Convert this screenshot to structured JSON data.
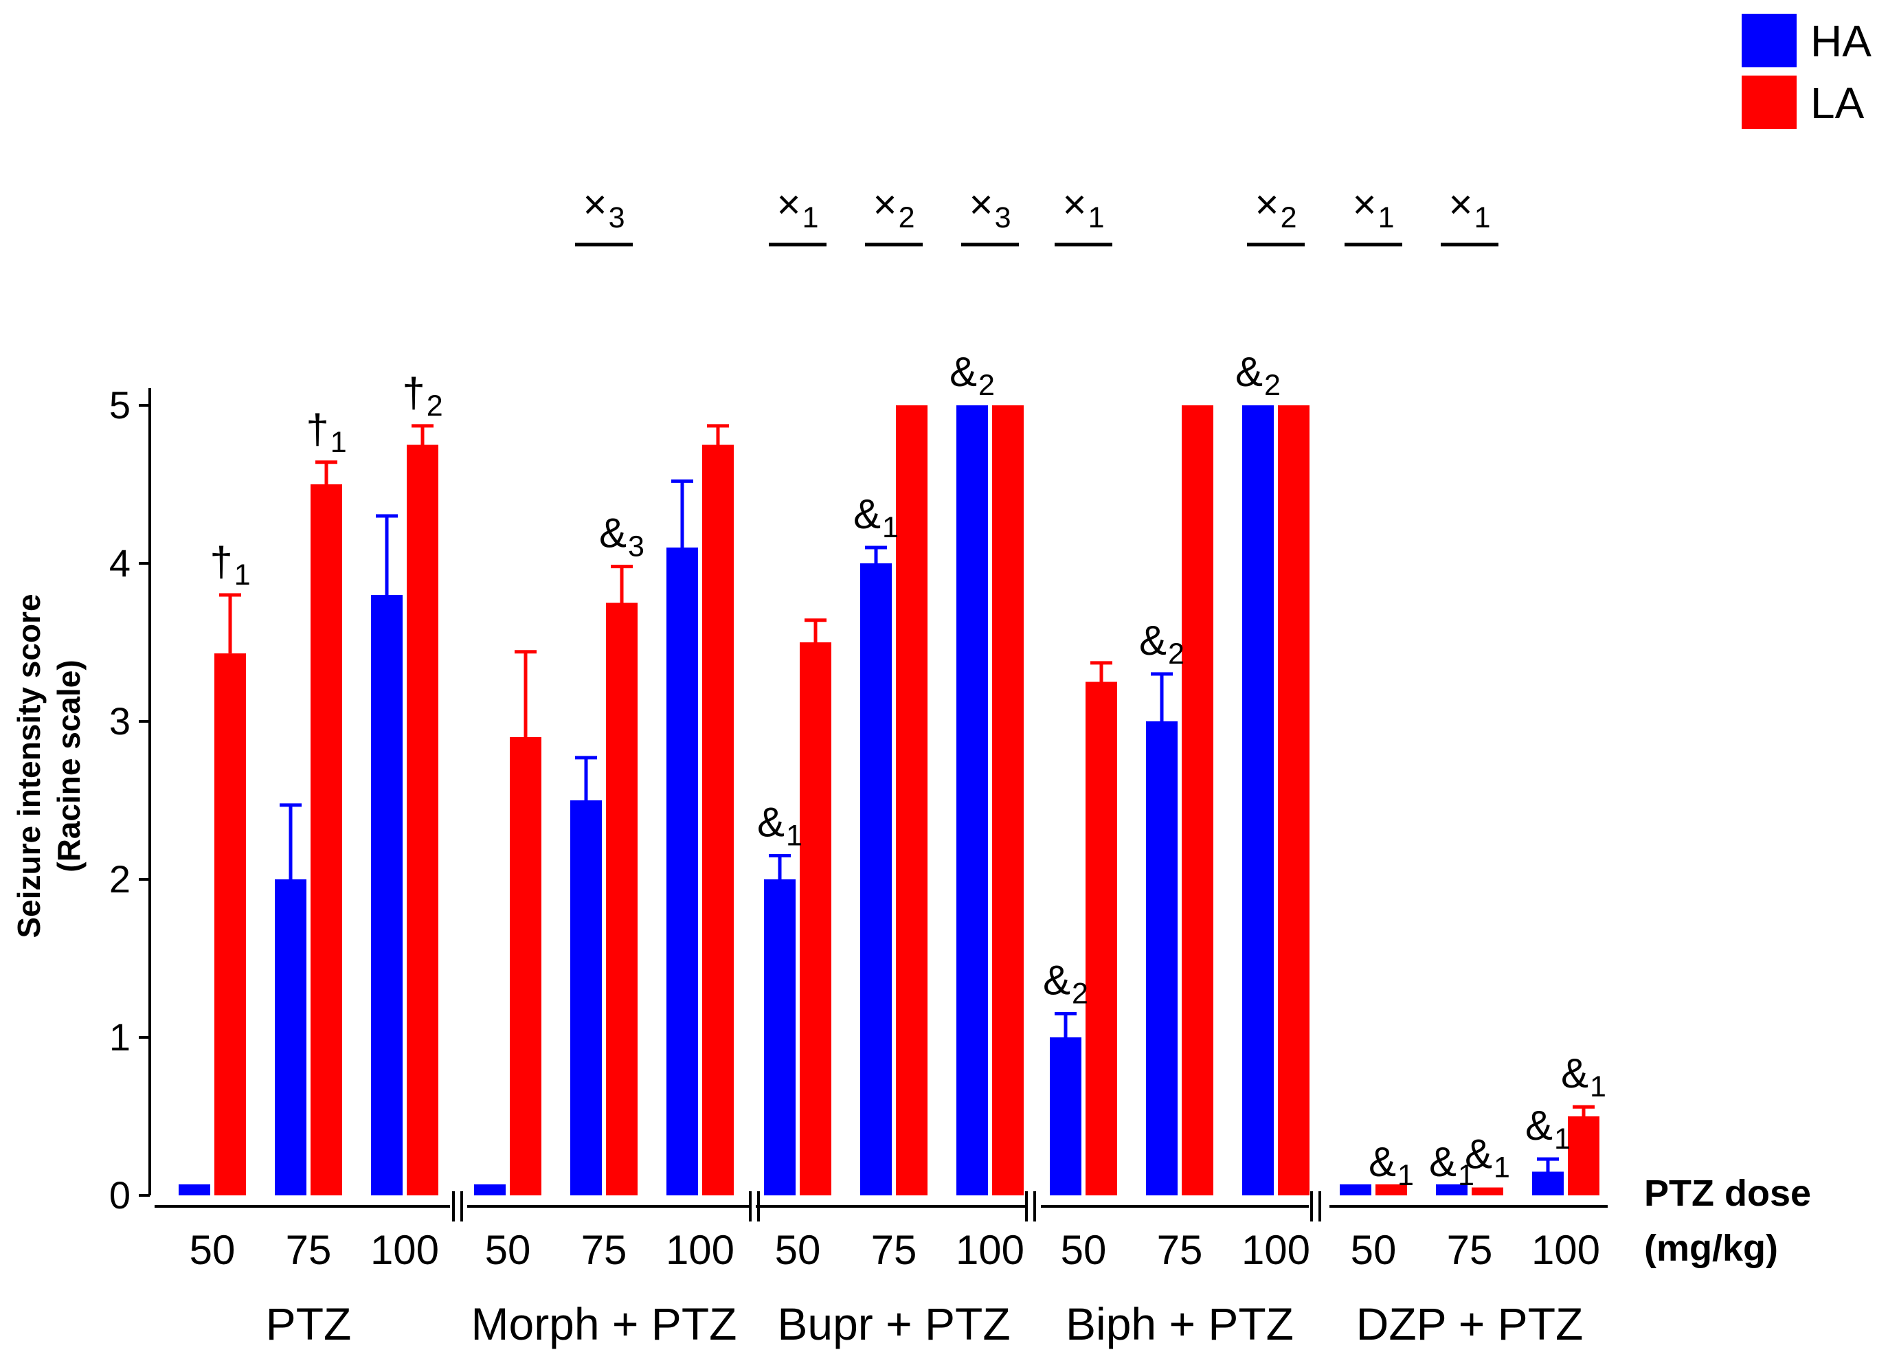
{
  "chart_data": {
    "type": "bar",
    "ylabel_line1": "Seizure intensity score",
    "ylabel_line2": "(Racine scale)",
    "xlabel_line1": "PTZ dose",
    "xlabel_line2": "(mg/kg)",
    "ylim": [
      0,
      5
    ],
    "yticks": [
      "0",
      "1",
      "2",
      "3",
      "4",
      "5"
    ],
    "dose_labels": [
      "50",
      "75",
      "100"
    ],
    "legend": [
      {
        "name": "HA",
        "color": "#0000ff"
      },
      {
        "name": "LA",
        "color": "#ff0000"
      }
    ],
    "groups": [
      {
        "name": "PTZ",
        "HA": {
          "values": [
            0,
            2.0,
            3.8
          ],
          "errors": [
            0,
            0.47,
            0.5
          ]
        },
        "LA": {
          "values": [
            3.43,
            4.5,
            4.75
          ],
          "errors": [
            0.37,
            0.14,
            0.12
          ]
        }
      },
      {
        "name": "Morph + PTZ",
        "HA": {
          "values": [
            0,
            2.5,
            4.1
          ],
          "errors": [
            0,
            0.27,
            0.42
          ]
        },
        "LA": {
          "values": [
            2.9,
            3.75,
            4.75
          ],
          "errors": [
            0.54,
            0.23,
            0.12
          ]
        }
      },
      {
        "name": "Bupr + PTZ",
        "HA": {
          "values": [
            2.0,
            4.0,
            5.0
          ],
          "errors": [
            0.15,
            0.1,
            0
          ]
        },
        "LA": {
          "values": [
            3.5,
            5.0,
            5.0
          ],
          "errors": [
            0.14,
            0,
            0
          ]
        }
      },
      {
        "name": "Biph + PTZ",
        "HA": {
          "values": [
            1.0,
            3.0,
            5.0
          ],
          "errors": [
            0.15,
            0.3,
            0
          ]
        },
        "LA": {
          "values": [
            3.25,
            5.0,
            5.0
          ],
          "errors": [
            0.12,
            0,
            0
          ]
        }
      },
      {
        "name": "DZP + PTZ",
        "HA": {
          "values": [
            0,
            0,
            0.15
          ],
          "errors": [
            0,
            0,
            0.08
          ]
        },
        "LA": {
          "values": [
            0,
            0.05,
            0.5
          ],
          "errors": [
            0,
            0,
            0.06
          ]
        }
      }
    ],
    "bar_annotations": [
      {
        "group": 0,
        "dose": 0,
        "series": "LA",
        "symbol": "†",
        "sub": "1"
      },
      {
        "group": 0,
        "dose": 1,
        "series": "LA",
        "symbol": "†",
        "sub": "1"
      },
      {
        "group": 0,
        "dose": 2,
        "series": "LA",
        "symbol": "†",
        "sub": "2"
      },
      {
        "group": 1,
        "dose": 1,
        "series": "LA",
        "symbol": "&",
        "sub": "3"
      },
      {
        "group": 2,
        "dose": 0,
        "series": "HA",
        "symbol": "&",
        "sub": "1"
      },
      {
        "group": 2,
        "dose": 1,
        "series": "HA",
        "symbol": "&",
        "sub": "1"
      },
      {
        "group": 2,
        "dose": 2,
        "series": "HA",
        "symbol": "&",
        "sub": "2"
      },
      {
        "group": 3,
        "dose": 0,
        "series": "HA",
        "symbol": "&",
        "sub": "2"
      },
      {
        "group": 3,
        "dose": 1,
        "series": "HA",
        "symbol": "&",
        "sub": "2"
      },
      {
        "group": 3,
        "dose": 2,
        "series": "HA",
        "symbol": "&",
        "sub": "2"
      },
      {
        "group": 4,
        "dose": 0,
        "series": "LA",
        "symbol": "&",
        "sub": "1"
      },
      {
        "group": 4,
        "dose": 1,
        "series": "HA",
        "symbol": "&",
        "sub": "1"
      },
      {
        "group": 4,
        "dose": 1,
        "series": "LA",
        "symbol": "&",
        "sub": "1"
      },
      {
        "group": 4,
        "dose": 2,
        "series": "HA",
        "symbol": "&",
        "sub": "1"
      },
      {
        "group": 4,
        "dose": 2,
        "series": "LA",
        "symbol": "&",
        "sub": "1"
      }
    ],
    "top_annotations": [
      {
        "group": 1,
        "dose": 1,
        "symbol": "×",
        "sub": "3"
      },
      {
        "group": 2,
        "dose": 0,
        "symbol": "×",
        "sub": "1"
      },
      {
        "group": 2,
        "dose": 1,
        "symbol": "×",
        "sub": "2"
      },
      {
        "group": 2,
        "dose": 2,
        "symbol": "×",
        "sub": "3"
      },
      {
        "group": 3,
        "dose": 0,
        "symbol": "×",
        "sub": "1"
      },
      {
        "group": 3,
        "dose": 2,
        "symbol": "×",
        "sub": "2"
      },
      {
        "group": 4,
        "dose": 0,
        "symbol": "×",
        "sub": "1"
      },
      {
        "group": 4,
        "dose": 1,
        "symbol": "×",
        "sub": "1"
      }
    ]
  }
}
